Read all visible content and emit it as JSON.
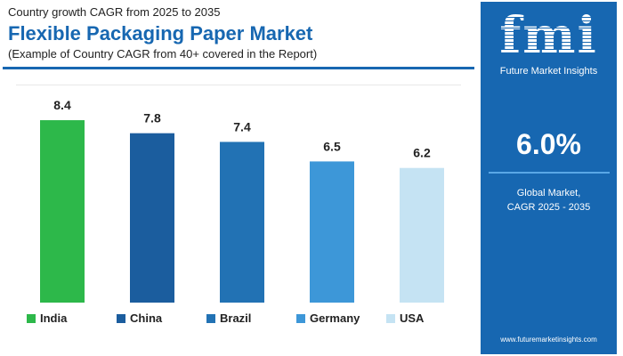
{
  "header": {
    "subtitle": "Country growth CAGR from 2025 to 2035",
    "title": "Flexible Packaging Paper Market",
    "note": "(Example of Country CAGR from 40+ covered in the Report)"
  },
  "chart_data": {
    "type": "bar",
    "categories": [
      "India",
      "China",
      "Brazil",
      "Germany",
      "USA"
    ],
    "values": [
      8.4,
      7.8,
      7.4,
      6.5,
      6.2
    ],
    "colors": [
      "#2db84a",
      "#1b5d9e",
      "#2272b4",
      "#3d97d8",
      "#c5e3f3"
    ],
    "legend": "bottom",
    "grid": false
  },
  "panel": {
    "logo": "fmi",
    "brand": "Future Market Insights",
    "value": "6.0%",
    "label1": "Global Market,",
    "label2": "CAGR 2025 - 2035",
    "url": "www.futuremarketinsights.com",
    "color": "#1767b1"
  }
}
